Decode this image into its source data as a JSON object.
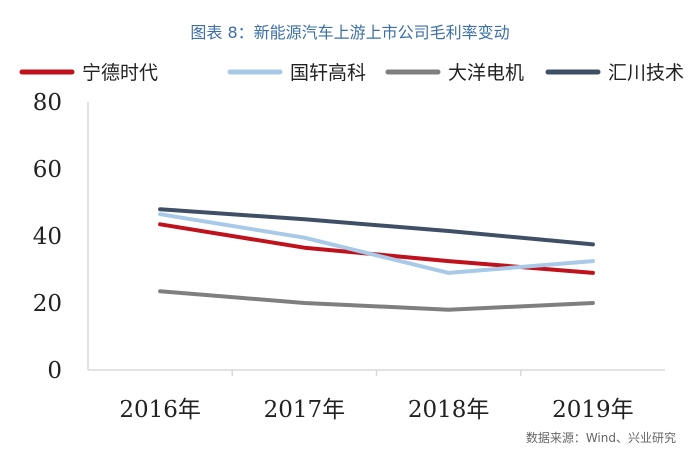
{
  "chart_data": {
    "type": "line",
    "title": "图表 8：新能源汽车上游上市公司毛利率变动",
    "categories": [
      "2016年",
      "2017年",
      "2018年",
      "2019年"
    ],
    "ylim": [
      0,
      80
    ],
    "yticks": [
      0,
      20,
      40,
      60,
      80
    ],
    "grid": false,
    "legend_position": "top",
    "series": [
      {
        "name": "宁德时代",
        "color": "#c0121c",
        "values": [
          43.5,
          36.5,
          32.5,
          29.0
        ]
      },
      {
        "name": "国轩高科",
        "color": "#a9c9e8",
        "values": [
          46.5,
          39.5,
          29.0,
          32.5
        ]
      },
      {
        "name": "大洋电机",
        "color": "#7f7f7f",
        "values": [
          23.5,
          20.0,
          18.0,
          20.0
        ]
      },
      {
        "name": "汇川技术",
        "color": "#3f4f66",
        "values": [
          48.0,
          45.0,
          41.5,
          37.5
        ]
      }
    ],
    "source": "数据来源：Wind、兴业研究"
  }
}
